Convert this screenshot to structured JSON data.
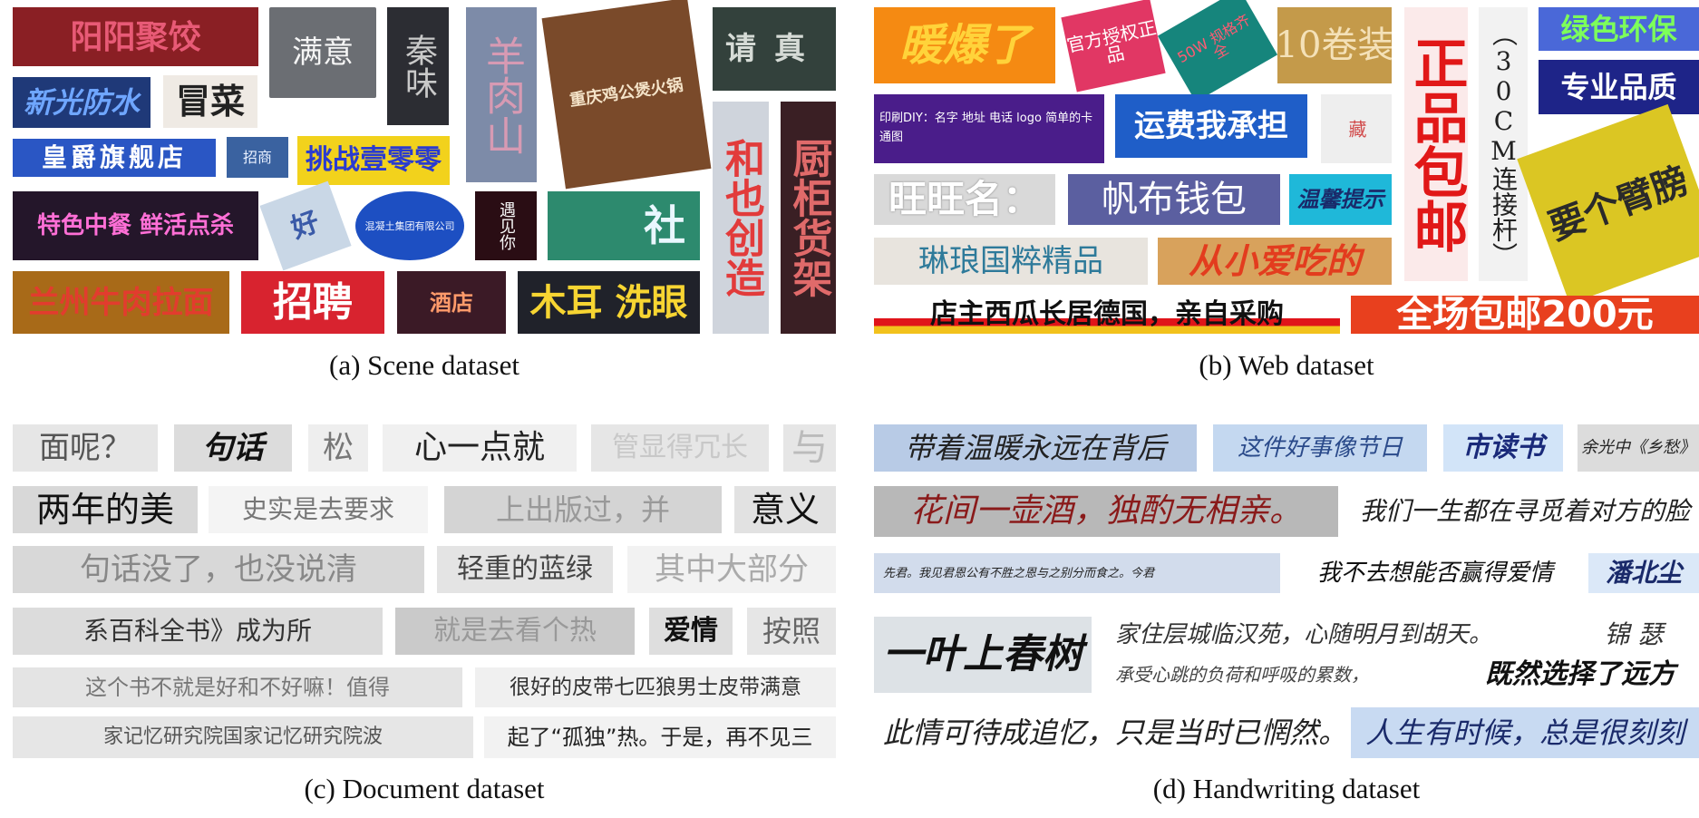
{
  "captions": {
    "scene": "(a) Scene dataset",
    "web": "(b) Web dataset",
    "document": "(c) Document dataset",
    "handwriting": "(d) Handwriting dataset"
  },
  "scene": {
    "tiles": [
      "阳阳聚饺",
      "满意",
      "秦味",
      "羊肉山",
      "重庆鸡公煲火锅",
      "请真",
      "新光防水",
      "冒菜",
      "皇爵旗舰店",
      "招商",
      "挑战壹零零",
      "特色中餐 鲜活点杀",
      "好",
      "混凝土集团有限公司",
      "遇见你",
      "社",
      "和也创造",
      "厨柜货架",
      "兰州牛肉拉面",
      "招聘",
      "酒店",
      "木耳 洗眼"
    ]
  },
  "web": {
    "tiles": [
      "暖爆了",
      "官方授权正品",
      "50W 规格齐全",
      "10卷装",
      "正品包邮",
      "（30CM连接杆）",
      "绿色环保",
      "专业品质",
      "印刷DIY：名字 地址 电话 logo 简单的卡通图",
      "运费我承担",
      "藏",
      "要个臂膀",
      "旺旺名：",
      "帆布钱包",
      "温馨提示",
      "琳琅国粹精品",
      "从小爱吃的",
      "店主西瓜长居德国，亲自采购",
      "全场包邮200元"
    ]
  },
  "document": {
    "tiles": [
      "面呢？",
      "句话",
      "松",
      "心一点就",
      "管显得冗长",
      "与",
      "两年的美",
      "史实是去要求",
      "上出版过，并",
      "意义",
      "句话没了，也没说清",
      "轻重的蓝绿",
      "其中大部分",
      "系百科全书》成为所",
      "就是去看个热",
      "爱情",
      "按照",
      "这个书不就是好和不好嘛！值得",
      "很好的皮带七匹狼男士皮带满意",
      "家记忆研究院国家记忆研究院波",
      "起了“孤独”热。于是，再不见三"
    ]
  },
  "handwriting": {
    "tiles": [
      "带着温暖永远在背后",
      "这件好事像节日",
      "市读书",
      "余光中《乡愁》",
      "花间一壶酒，独酌无相亲。",
      "我们一生都在寻觅着对方的脸",
      "先君。我见君恩公有不胜之恩与之别分而食之。今君",
      "我不去想能否赢得爱情",
      "潘北尘",
      "一叶上春树",
      "家住层城临汉苑，心随明月到胡天。",
      "锦 瑟",
      "承受心跳的负荷和呼吸的累数，",
      "既然选择了远方",
      "此情可待成追忆，只是当时已惘然。",
      "人生有时候，总是很刻刻"
    ]
  }
}
